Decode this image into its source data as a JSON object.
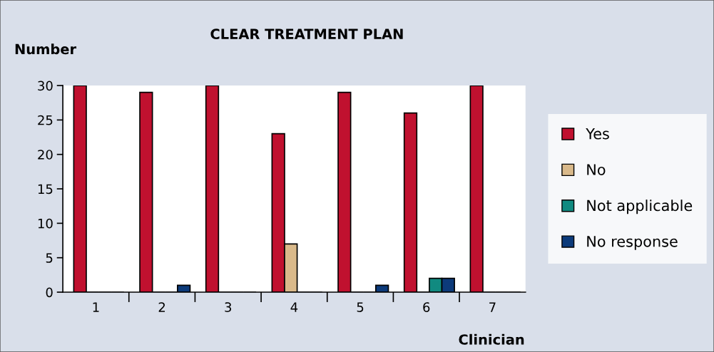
{
  "chart_data": {
    "type": "bar",
    "title": "CLEAR TREATMENT PLAN",
    "ylabel": "Number",
    "xlabel": "Clinician",
    "categories": [
      "1",
      "2",
      "3",
      "4",
      "5",
      "6",
      "7"
    ],
    "series": [
      {
        "name": "Yes",
        "color": "#c0112f",
        "values": [
          30,
          29,
          30,
          23,
          29,
          26,
          30
        ]
      },
      {
        "name": "No",
        "color": "#d9b98a",
        "values": [
          0,
          0,
          0,
          7,
          0,
          0,
          0
        ]
      },
      {
        "name": "Not applicable",
        "color": "#118a80",
        "values": [
          0,
          0,
          0,
          0,
          0,
          2,
          0
        ]
      },
      {
        "name": "No response",
        "color": "#0c3a7a",
        "values": [
          0,
          1,
          0,
          0,
          1,
          2,
          0
        ]
      }
    ],
    "ylim": [
      0,
      30
    ],
    "yticks": [
      0,
      5,
      10,
      15,
      20,
      25,
      30
    ],
    "legend": "right",
    "grid": false
  }
}
